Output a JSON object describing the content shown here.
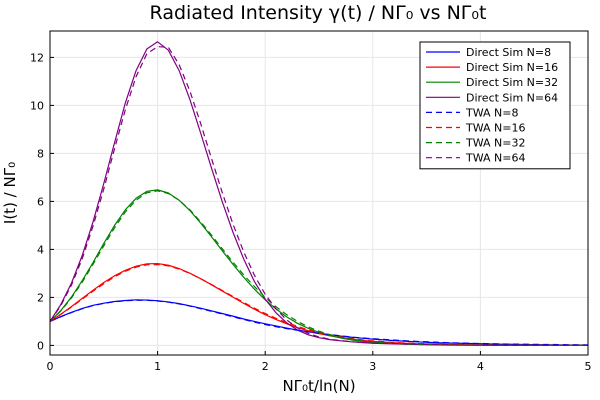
{
  "chart_data": {
    "type": "line",
    "title": "Radiated Intensity γ(t) / NΓ₀ vs NΓ₀t",
    "xlabel": "NΓ₀t/ln(N)",
    "ylabel": "I(t) / NΓ₀",
    "xlim": [
      0,
      5
    ],
    "ylim": [
      -0.4,
      13.1
    ],
    "xticks": [
      0,
      1,
      2,
      3,
      4,
      5
    ],
    "yticks": [
      0,
      2,
      4,
      6,
      8,
      10,
      12
    ],
    "grid": true,
    "legend_position": "top-right",
    "x": [
      0,
      0.1,
      0.2,
      0.3,
      0.4,
      0.5,
      0.6,
      0.7,
      0.8,
      0.9,
      1.0,
      1.1,
      1.2,
      1.3,
      1.4,
      1.5,
      1.6,
      1.7,
      1.8,
      1.9,
      2.0,
      2.1,
      2.2,
      2.3,
      2.4,
      2.5,
      2.6,
      2.7,
      2.8,
      2.9,
      3.0,
      3.2,
      3.4,
      3.6,
      3.8,
      4.0,
      4.2,
      4.4,
      4.6,
      4.8,
      5.0
    ],
    "series": [
      {
        "name": "Direct Sim N=8",
        "color": "#0000ff",
        "dash": "solid",
        "values": [
          1.0,
          1.2,
          1.38,
          1.54,
          1.67,
          1.76,
          1.83,
          1.87,
          1.9,
          1.89,
          1.86,
          1.81,
          1.74,
          1.65,
          1.55,
          1.44,
          1.33,
          1.22,
          1.1,
          1.0,
          0.9,
          0.81,
          0.72,
          0.64,
          0.57,
          0.5,
          0.44,
          0.39,
          0.34,
          0.3,
          0.26,
          0.2,
          0.15,
          0.11,
          0.09,
          0.07,
          0.05,
          0.04,
          0.03,
          0.02,
          0.02
        ]
      },
      {
        "name": "Direct Sim N=16",
        "color": "#ff0000",
        "dash": "solid",
        "values": [
          1.0,
          1.3,
          1.62,
          1.96,
          2.3,
          2.62,
          2.9,
          3.13,
          3.3,
          3.4,
          3.41,
          3.34,
          3.2,
          3.01,
          2.78,
          2.53,
          2.27,
          2.01,
          1.75,
          1.51,
          1.28,
          1.08,
          0.9,
          0.74,
          0.61,
          0.49,
          0.4,
          0.33,
          0.26,
          0.21,
          0.17,
          0.11,
          0.07,
          0.05,
          0.03,
          0.02,
          0.01,
          0.01,
          0.01,
          0.0,
          0.0
        ]
      },
      {
        "name": "Direct Sim N=32",
        "color": "#008000",
        "dash": "solid",
        "values": [
          1.0,
          1.45,
          2.02,
          2.7,
          3.45,
          4.25,
          5.0,
          5.65,
          6.13,
          6.42,
          6.48,
          6.35,
          6.05,
          5.62,
          5.1,
          4.53,
          3.95,
          3.38,
          2.84,
          2.34,
          1.9,
          1.52,
          1.19,
          0.92,
          0.71,
          0.54,
          0.41,
          0.31,
          0.23,
          0.17,
          0.13,
          0.07,
          0.04,
          0.02,
          0.01,
          0.01,
          0.0,
          0.0,
          0.0,
          0.0,
          0.0
        ]
      },
      {
        "name": "Direct Sim N=64",
        "color": "#800080",
        "dash": "solid",
        "values": [
          1.0,
          1.7,
          2.6,
          3.75,
          5.15,
          6.75,
          8.45,
          10.1,
          11.45,
          12.35,
          12.65,
          12.3,
          11.45,
          10.25,
          8.85,
          7.4,
          6.0,
          4.72,
          3.6,
          2.66,
          1.93,
          1.36,
          0.94,
          0.64,
          0.44,
          0.32,
          0.24,
          0.19,
          0.15,
          0.12,
          0.09,
          0.06,
          0.04,
          0.03,
          0.02,
          0.01,
          0.01,
          0.0,
          0.0,
          0.0,
          0.0
        ]
      },
      {
        "name": "TWA N=8",
        "color": "#0000ff",
        "dash": "dashed",
        "values": [
          1.0,
          1.19,
          1.37,
          1.53,
          1.66,
          1.75,
          1.82,
          1.86,
          1.88,
          1.88,
          1.85,
          1.8,
          1.73,
          1.64,
          1.53,
          1.42,
          1.31,
          1.19,
          1.08,
          0.97,
          0.87,
          0.78,
          0.7,
          0.63,
          0.56,
          0.5,
          0.45,
          0.4,
          0.35,
          0.31,
          0.28,
          0.22,
          0.17,
          0.13,
          0.1,
          0.08,
          0.06,
          0.05,
          0.04,
          0.03,
          0.02
        ]
      },
      {
        "name": "TWA N=16",
        "color": "#ff0000",
        "dash": "dashed",
        "values": [
          1.0,
          1.29,
          1.6,
          1.93,
          2.26,
          2.57,
          2.86,
          3.09,
          3.26,
          3.36,
          3.37,
          3.31,
          3.18,
          3.0,
          2.78,
          2.54,
          2.29,
          2.04,
          1.79,
          1.55,
          1.33,
          1.13,
          0.95,
          0.79,
          0.65,
          0.53,
          0.44,
          0.36,
          0.29,
          0.23,
          0.19,
          0.12,
          0.08,
          0.05,
          0.03,
          0.02,
          0.01,
          0.01,
          0.01,
          0.0,
          0.0
        ]
      },
      {
        "name": "TWA N=32",
        "color": "#008000",
        "dash": "dashed",
        "values": [
          1.0,
          1.43,
          1.98,
          2.64,
          3.38,
          4.15,
          4.9,
          5.56,
          6.05,
          6.36,
          6.44,
          6.33,
          6.05,
          5.65,
          5.15,
          4.6,
          4.03,
          3.47,
          2.94,
          2.45,
          2.0,
          1.61,
          1.28,
          1.0,
          0.77,
          0.59,
          0.45,
          0.34,
          0.26,
          0.19,
          0.14,
          0.08,
          0.04,
          0.02,
          0.01,
          0.01,
          0.0,
          0.0,
          0.0,
          0.0,
          0.0
        ]
      },
      {
        "name": "TWA N=64",
        "color": "#800080",
        "dash": "dashed",
        "values": [
          1.0,
          1.65,
          2.52,
          3.62,
          4.97,
          6.52,
          8.2,
          9.82,
          11.2,
          12.15,
          12.45,
          12.42,
          11.7,
          10.6,
          9.25,
          7.8,
          6.38,
          5.06,
          3.9,
          2.92,
          2.13,
          1.52,
          1.06,
          0.73,
          0.5,
          0.35,
          0.26,
          0.2,
          0.16,
          0.12,
          0.1,
          0.07,
          0.05,
          0.03,
          0.02,
          0.01,
          0.01,
          0.0,
          0.0,
          0.0,
          0.0
        ]
      }
    ]
  }
}
